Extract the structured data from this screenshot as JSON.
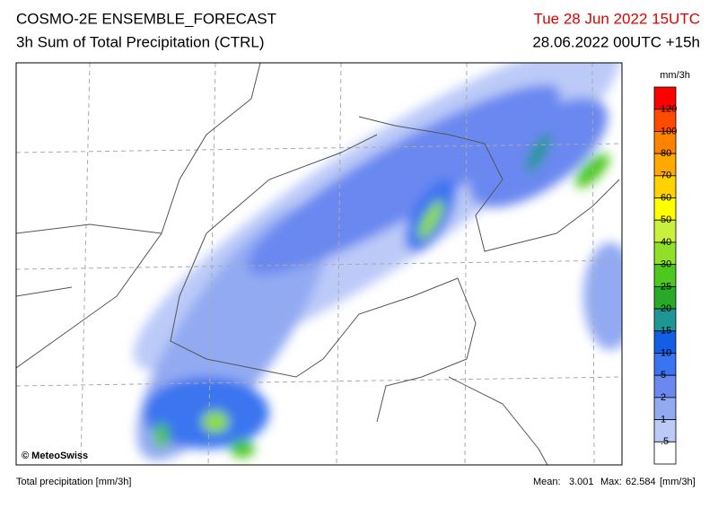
{
  "header": {
    "title": "COSMO-2E ENSEMBLE_FORECAST",
    "subtitle": "3h Sum of Total Precipitation (CTRL)",
    "valid_time": "Tue 28 Jun 2022 15UTC",
    "run_time": "28.06.2022 00UTC +15h"
  },
  "map": {
    "credit": "© MeteoSwiss"
  },
  "legend": {
    "unit": "mm/3h",
    "colors": [
      "#ff0000",
      "#ff4a00",
      "#ff8200",
      "#ffa800",
      "#ffd200",
      "#ffff00",
      "#c8f03c",
      "#90e028",
      "#4cc81e",
      "#28aa28",
      "#1e9696",
      "#145ee6",
      "#3a74f0",
      "#6a88f0",
      "#92aaf2",
      "#bccaf8",
      "#ffffff"
    ],
    "labels": [
      "120",
      "100",
      "80",
      "70",
      "60",
      "50",
      "40",
      "30",
      "25",
      "20",
      "15",
      "10",
      "5",
      "2",
      "1",
      ".5"
    ]
  },
  "footer": {
    "left": "Total precipitation [mm/3h]",
    "mean_label": "Mean:",
    "mean": "3.001",
    "max_label": "Max:",
    "max": "62.584",
    "unit": "[mm/3h]"
  }
}
